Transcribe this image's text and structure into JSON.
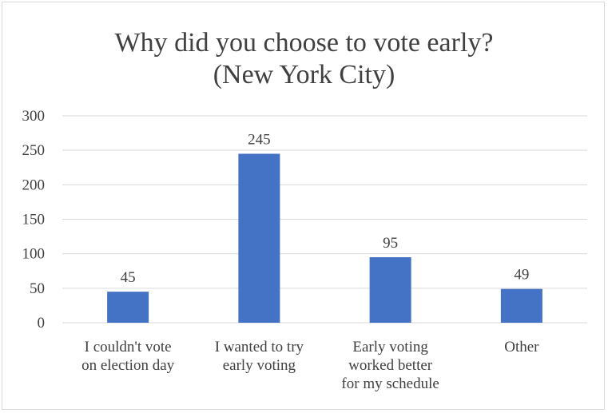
{
  "chart_data": {
    "type": "bar",
    "title": "Why did you choose to vote early? (New York City)",
    "title_lines": [
      "Why did you choose to vote early?",
      "(New York City)"
    ],
    "categories": [
      [
        "I couldn't vote",
        "on election day"
      ],
      [
        "I wanted to try",
        "early voting"
      ],
      [
        "Early voting",
        "worked better",
        "for my schedule"
      ],
      [
        "Other"
      ]
    ],
    "values": [
      45,
      245,
      95,
      49
    ],
    "data_labels": [
      "45",
      "245",
      "95",
      "49"
    ],
    "y_ticks": [
      "0",
      "50",
      "100",
      "150",
      "200",
      "250",
      "300"
    ],
    "ylim": [
      0,
      300
    ],
    "xlabel": "",
    "ylabel": "",
    "grid": true,
    "legend": "none",
    "bar_color": "#4472c4",
    "grid_color": "#d9d9d9",
    "text_color": "#404040"
  }
}
